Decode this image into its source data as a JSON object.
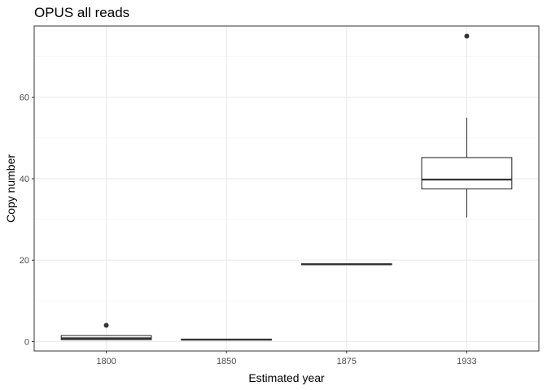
{
  "chart_data": {
    "type": "boxplot",
    "title": "OPUS all reads",
    "xlabel": "Estimated year",
    "ylabel": "Copy number",
    "categories": [
      "1800",
      "1850",
      "1875",
      "1933"
    ],
    "ylim": [
      -2.3,
      77.5
    ],
    "yticks": [
      0,
      20,
      40,
      60
    ],
    "y_minor_ticks": [
      10,
      30,
      50,
      70
    ],
    "grid": true,
    "boxes": [
      {
        "category": "1800",
        "whisker_low": 0.5,
        "q1": 0.5,
        "median": 0.8,
        "q3": 1.5,
        "whisker_high": 1.5,
        "outliers": [
          4
        ]
      },
      {
        "category": "1850",
        "whisker_low": 0.4,
        "q1": 0.4,
        "median": 0.5,
        "q3": 0.6,
        "whisker_high": 0.6,
        "outliers": []
      },
      {
        "category": "1875",
        "whisker_low": 18.9,
        "q1": 18.9,
        "median": 19,
        "q3": 19.1,
        "whisker_high": 19.1,
        "outliers": []
      },
      {
        "category": "1933",
        "whisker_low": 30.5,
        "q1": 37.5,
        "median": 39.8,
        "q3": 45.2,
        "whisker_high": 55,
        "outliers": [
          75
        ]
      }
    ]
  }
}
